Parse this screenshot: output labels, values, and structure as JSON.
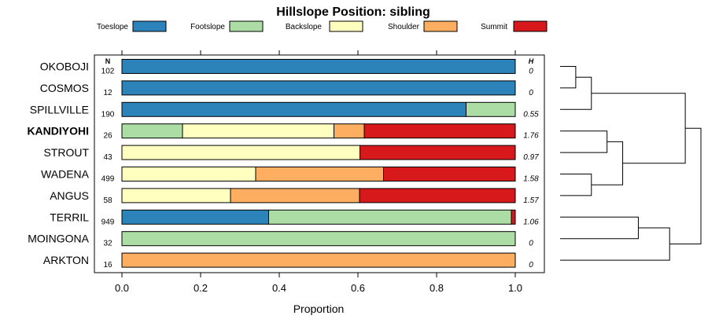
{
  "chart_data": {
    "type": "bar",
    "orientation": "horizontal",
    "stacked": true,
    "title": "Hillslope Position: sibling",
    "xlabel": "Proportion",
    "xlim": [
      0,
      1
    ],
    "xticks": [
      "0.0",
      "0.2",
      "0.4",
      "0.6",
      "0.8",
      "1.0"
    ],
    "n_header": "N",
    "h_header": "H",
    "legend": [
      {
        "name": "Toeslope",
        "color": "#2b83ba"
      },
      {
        "name": "Footslope",
        "color": "#abdda4"
      },
      {
        "name": "Backslope",
        "color": "#ffffbf"
      },
      {
        "name": "Shoulder",
        "color": "#fdae61"
      },
      {
        "name": "Summit",
        "color": "#d7191c"
      }
    ],
    "categories": [
      "OKOBOJI",
      "COSMOS",
      "SPILLVILLE",
      "KANDIYOHI",
      "STROUT",
      "WADENA",
      "ANGUS",
      "TERRIL",
      "MOINGONA",
      "ARKTON"
    ],
    "highlight": "KANDIYOHI",
    "n": [
      "102",
      "12",
      "190",
      "26",
      "43",
      "499",
      "58",
      "949",
      "32",
      "16"
    ],
    "h": [
      "0",
      "0",
      "0.55",
      "1.76",
      "0.97",
      "1.58",
      "1.57",
      "1.06",
      "0",
      "0"
    ],
    "series": [
      {
        "name": "Toeslope",
        "values": [
          1.0,
          1.0,
          0.875,
          0.0,
          0.0,
          0.0,
          0.0,
          0.373,
          0.0,
          0.0
        ]
      },
      {
        "name": "Footslope",
        "values": [
          0.0,
          0.0,
          0.125,
          0.154,
          0.0,
          0.0,
          0.0,
          0.617,
          1.0,
          0.0
        ]
      },
      {
        "name": "Backslope",
        "values": [
          0.0,
          0.0,
          0.0,
          0.385,
          0.605,
          0.34,
          0.276,
          0.0,
          0.0,
          0.0
        ]
      },
      {
        "name": "Shoulder",
        "values": [
          0.0,
          0.0,
          0.0,
          0.077,
          0.0,
          0.325,
          0.328,
          0.0,
          0.0,
          1.0
        ]
      },
      {
        "name": "Summit",
        "values": [
          0.0,
          0.0,
          0.0,
          0.384,
          0.395,
          0.335,
          0.396,
          0.01,
          0.0,
          0.0
        ]
      }
    ],
    "dendrogram": {
      "merges": [
        {
          "a": "OKOBOJI",
          "b": "COSMOS"
        },
        {
          "a": "OKOBOJI+COSMOS",
          "b": "SPILLVILLE"
        },
        {
          "a": "KANDIYOHI",
          "b": "STROUT"
        },
        {
          "a": "WADENA",
          "b": "ANGUS"
        },
        {
          "a": "KANDIYOHI+STROUT",
          "b": "WADENA+ANGUS"
        },
        {
          "a": "OKOBOJI+COSMOS+SPILLVILLE",
          "b": "KANDIYOHI+STROUT+WADENA+ANGUS"
        },
        {
          "a": "TERRIL",
          "b": "MOINGONA"
        },
        {
          "a": "TERRIL+MOINGONA",
          "b": "ARKTON"
        },
        {
          "a": "OKOBOJI+COSMOS+SPILLVILLE+KANDIYOHI+STROUT+WADENA+ANGUS",
          "b": "TERRIL+MOINGONA+ARKTON"
        }
      ],
      "heights": [
        1,
        2,
        3,
        2,
        4,
        8,
        5,
        7,
        9
      ]
    }
  }
}
